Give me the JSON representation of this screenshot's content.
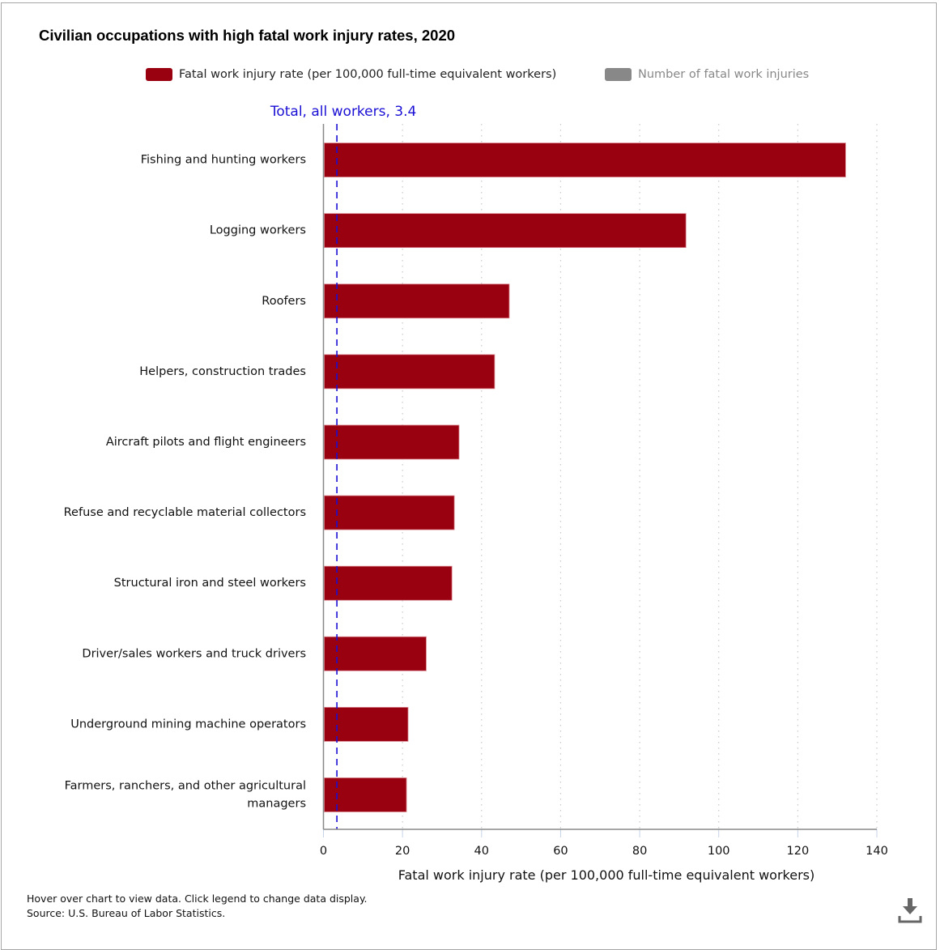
{
  "title": "Civilian occupations with high fatal work injury rates, 2020",
  "legend": {
    "items": [
      {
        "label": "Fatal work injury rate (per 100,000 full-time equivalent workers)",
        "color": "#990010",
        "active": true
      },
      {
        "label": "Number of fatal work injuries",
        "color": "#888888",
        "active": false
      }
    ]
  },
  "footer": {
    "note": "Hover over chart to view data. Click legend to change data display.",
    "source": "Source: U.S. Bureau of Labor Statistics."
  },
  "download_icon": "download-icon",
  "chart_data": {
    "type": "bar",
    "orientation": "horizontal",
    "title": "Civilian occupations with high fatal work injury rates, 2020",
    "xlabel": "Fatal work injury rate (per 100,000 full-time equivalent workers)",
    "ylabel": "",
    "xlim": [
      0,
      140
    ],
    "xticks": [
      0,
      20,
      40,
      60,
      80,
      100,
      120,
      140
    ],
    "grid": "vertical dotted",
    "legend_position": "top",
    "categories": [
      "Fishing and hunting workers",
      "Logging workers",
      "Roofers",
      "Helpers, construction trades",
      "Aircraft pilots and flight engineers",
      "Refuse and recyclable material collectors",
      "Structural iron and steel workers",
      "Driver/sales workers and truck drivers",
      "Underground mining machine operators",
      "Farmers, ranchers, and other agricultural managers"
    ],
    "series": [
      {
        "name": "Fatal work injury rate (per 100,000 full-time equivalent workers)",
        "color": "#990010",
        "values": [
          132.1,
          91.7,
          47.0,
          43.3,
          34.3,
          33.1,
          32.5,
          26.0,
          21.4,
          21.0
        ]
      }
    ],
    "reference_line": {
      "label": "Total, all workers, 3.4",
      "value": 3.4,
      "color": "#1a0fd4",
      "style": "dashed"
    }
  }
}
